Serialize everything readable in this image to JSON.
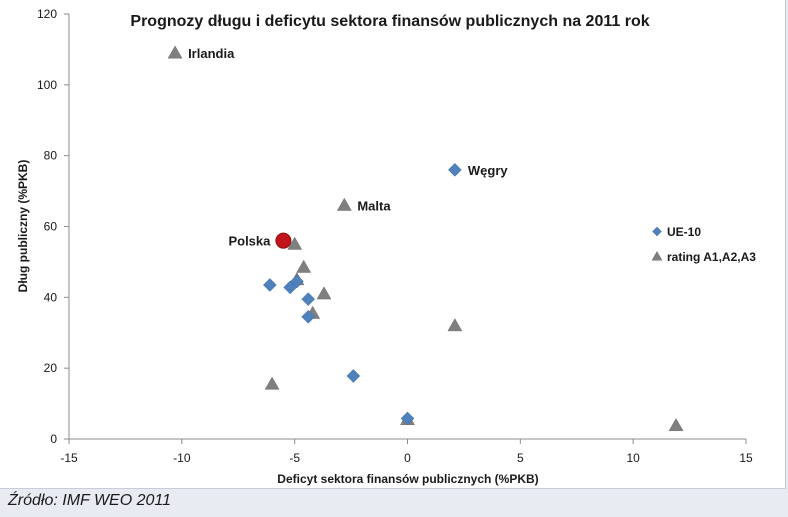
{
  "source_note": "Źródło: IMF WEO 2011",
  "chart_data": {
    "type": "scatter",
    "title": "Prognozy długu i deficytu sektora finansów publicznych na 2011 rok",
    "xlabel": "Deficyt sektora finansów publicznych (%PKB)",
    "ylabel": "Dług publiczny (%PKB)",
    "xlim": [
      -15,
      15
    ],
    "ylim": [
      0,
      120
    ],
    "x_ticks": [
      -15,
      -10,
      -5,
      0,
      5,
      10,
      15
    ],
    "y_ticks": [
      0,
      20,
      40,
      60,
      80,
      100,
      120
    ],
    "grid": false,
    "legend_position": "right",
    "series": [
      {
        "name": "UE-10",
        "marker": "diamond",
        "color": "#4f81bd",
        "points": [
          {
            "x": 2.1,
            "y": 76
          },
          {
            "x": -6.1,
            "y": 43.5
          },
          {
            "x": -5.2,
            "y": 42.8
          },
          {
            "x": -4.9,
            "y": 44.5
          },
          {
            "x": -4.4,
            "y": 39.5
          },
          {
            "x": -4.4,
            "y": 34.5
          },
          {
            "x": -2.4,
            "y": 17.8
          },
          {
            "x": 0,
            "y": 5.8
          }
        ]
      },
      {
        "name": "rating A1,A2,A3",
        "marker": "triangle",
        "color": "#7f7f7f",
        "points": [
          {
            "x": -10.3,
            "y": 109
          },
          {
            "x": -2.8,
            "y": 66
          },
          {
            "x": -5,
            "y": 55
          },
          {
            "x": -4.6,
            "y": 48.5
          },
          {
            "x": -4.9,
            "y": 45
          },
          {
            "x": -3.7,
            "y": 41
          },
          {
            "x": -4.2,
            "y": 35.5
          },
          {
            "x": 2.1,
            "y": 32
          },
          {
            "x": -6,
            "y": 15.5
          },
          {
            "x": 0,
            "y": 5.5
          },
          {
            "x": 11.9,
            "y": 3.8
          }
        ]
      },
      {
        "name": "Polska",
        "marker": "circle",
        "color": "#c0141a",
        "points": [
          {
            "x": -5.5,
            "y": 56
          }
        ]
      }
    ],
    "annotations": [
      {
        "text": "Irlandia",
        "x": -10.3,
        "y": 109
      },
      {
        "text": "Węgry",
        "x": 2.1,
        "y": 76
      },
      {
        "text": "Malta",
        "x": -2.8,
        "y": 66
      },
      {
        "text": "Polska",
        "x": -5.5,
        "y": 56
      }
    ]
  }
}
